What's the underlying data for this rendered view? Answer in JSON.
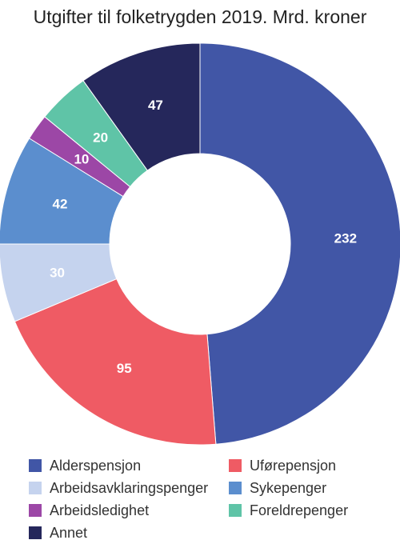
{
  "chart_data": {
    "type": "pie",
    "title": "Utgifter til folketrygden 2019. Mrd. kroner",
    "donut": true,
    "legend_position": "bottom",
    "slices": [
      {
        "label": "Alderspensjon",
        "value": 232,
        "color": "#4156a6"
      },
      {
        "label": "Uførepensjon",
        "value": 95,
        "color": "#ef5b64"
      },
      {
        "label": "Arbeidsavklaringspenger",
        "value": 30,
        "color": "#c5d3ee"
      },
      {
        "label": "Sykepenger",
        "value": 42,
        "color": "#5b8ece"
      },
      {
        "label": "Arbeidsledighet",
        "value": 10,
        "color": "#9c47a6"
      },
      {
        "label": "Foreldrepenger",
        "value": 20,
        "color": "#5fc4a7"
      },
      {
        "label": "Annet",
        "value": 47,
        "color": "#25275b"
      }
    ],
    "legend_order": [
      "Alderspensjon",
      "Uførepensjon",
      "Arbeidsavklaringspenger",
      "Sykepenger",
      "Arbeidsledighet",
      "Foreldrepenger",
      "Annet"
    ]
  }
}
